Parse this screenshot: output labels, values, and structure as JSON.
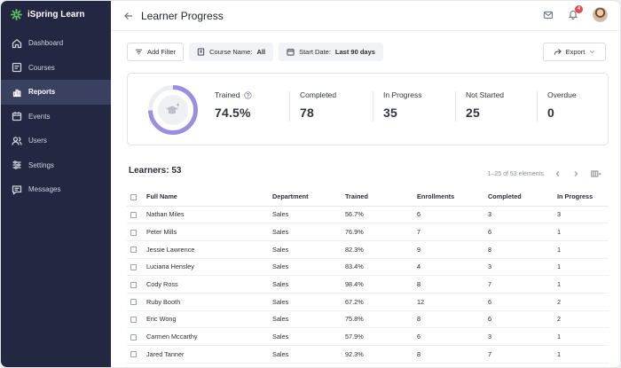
{
  "brand": {
    "name": "iSpring Learn",
    "accent": "#4caf50"
  },
  "sidebar": {
    "items": [
      {
        "label": "Dashboard",
        "icon": "home-icon"
      },
      {
        "label": "Courses",
        "icon": "courses-icon"
      },
      {
        "label": "Reports",
        "icon": "reports-icon",
        "active": true
      },
      {
        "label": "Events",
        "icon": "calendar-icon"
      },
      {
        "label": "Users",
        "icon": "users-icon"
      },
      {
        "label": "Settings",
        "icon": "settings-icon"
      },
      {
        "label": "Messages",
        "icon": "messages-icon"
      }
    ]
  },
  "header": {
    "title": "Learner Progress",
    "notification_count": "4"
  },
  "filters": {
    "add_filter": "Add Filter",
    "course_label": "Course Name:",
    "course_value": "All",
    "date_label": "Start Date:",
    "date_value": "Last 90 days",
    "export": "Export"
  },
  "stats": {
    "trained_label": "Trained",
    "trained_value": "74.5%",
    "trained_fraction": 0.745,
    "completed_label": "Completed",
    "completed_value": "78",
    "in_progress_label": "In Progress",
    "in_progress_value": "35",
    "not_started_label": "Not Started",
    "not_started_value": "25",
    "overdue_label": "Overdue",
    "overdue_value": "0",
    "ring_color": "#9b8ee0"
  },
  "learners": {
    "title": "Learners: 53",
    "pagination": "1–25 of 53 elements",
    "columns": [
      "Full Name",
      "Department",
      "Trained",
      "Enrollments",
      "Completed",
      "In Progress"
    ],
    "rows": [
      [
        "Nathan Miles",
        "Sales",
        "56.7%",
        "6",
        "3",
        "3"
      ],
      [
        "Peter Mills",
        "Sales",
        "76.9%",
        "7",
        "6",
        "1"
      ],
      [
        "Jessie Lawrence",
        "Sales",
        "82.3%",
        "9",
        "8",
        "1"
      ],
      [
        "Luciana Hensley",
        "Sales",
        "83.4%",
        "4",
        "3",
        "1"
      ],
      [
        "Cody Ross",
        "Sales",
        "98.4%",
        "8",
        "7",
        "1"
      ],
      [
        "Ruby Booth",
        "Sales",
        "67.2%",
        "12",
        "6",
        "2"
      ],
      [
        "Eric Wong",
        "Sales",
        "75.8%",
        "8",
        "6",
        "2"
      ],
      [
        "Carmen Mccarthy",
        "Sales",
        "57.9%",
        "6",
        "3",
        "1"
      ],
      [
        "Jared Tanner",
        "Sales",
        "92.3%",
        "8",
        "7",
        "1"
      ]
    ]
  }
}
